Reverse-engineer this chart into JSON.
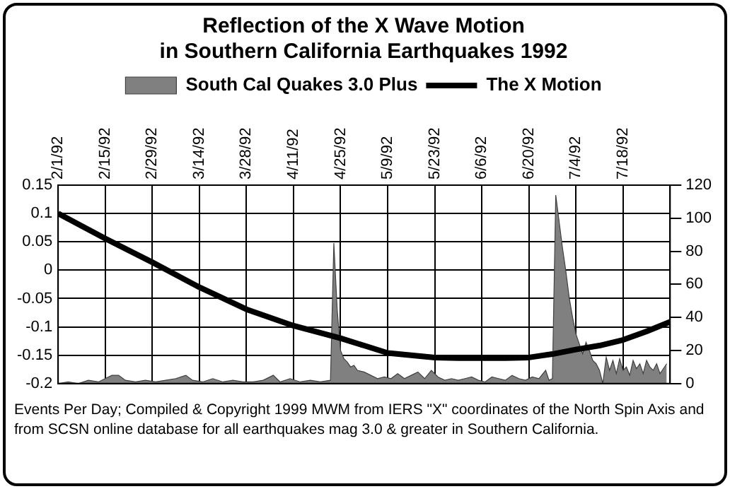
{
  "chart_data": {
    "type": "line",
    "title": "Reflection of the X Wave Motion\nin Southern California Earthquakes 1992",
    "xlim": [
      "1992-02-01",
      "1992-08-01"
    ],
    "xticks": [
      {
        "value": "1992-02-01",
        "label": "2/1/92"
      },
      {
        "value": "1992-02-15",
        "label": "2/15/92"
      },
      {
        "value": "1992-02-29",
        "label": "2/29/92"
      },
      {
        "value": "1992-03-14",
        "label": "3/14/92"
      },
      {
        "value": "1992-03-28",
        "label": "3/28/92"
      },
      {
        "value": "1992-04-11",
        "label": "4/11/92"
      },
      {
        "value": "1992-04-25",
        "label": "4/25/92"
      },
      {
        "value": "1992-05-09",
        "label": "5/9/92"
      },
      {
        "value": "1992-05-23",
        "label": "5/23/92"
      },
      {
        "value": "1992-06-06",
        "label": "6/6/92"
      },
      {
        "value": "1992-06-20",
        "label": "6/20/92"
      },
      {
        "value": "1992-07-04",
        "label": "7/4/92"
      },
      {
        "value": "1992-07-18",
        "label": "7/18/92"
      }
    ],
    "ylim": [
      -0.2,
      0.15
    ],
    "yticks": [
      -0.2,
      -0.15,
      -0.1,
      -0.05,
      0,
      0.05,
      0.1,
      0.15
    ],
    "y2lim": [
      0,
      120
    ],
    "y2ticks": [
      0,
      20,
      40,
      60,
      80,
      100,
      120
    ],
    "grid": true,
    "legend": "top",
    "series": [
      {
        "name": "South Cal Quakes 3.0 Plus",
        "type": "area",
        "axis": "y2",
        "color": "#808080",
        "x": [
          "1992-02-01",
          "1992-02-04",
          "1992-02-07",
          "1992-02-10",
          "1992-02-13",
          "1992-02-15",
          "1992-02-17",
          "1992-02-19",
          "1992-02-21",
          "1992-02-24",
          "1992-02-27",
          "1992-03-01",
          "1992-03-04",
          "1992-03-07",
          "1992-03-10",
          "1992-03-12",
          "1992-03-15",
          "1992-03-18",
          "1992-03-21",
          "1992-03-24",
          "1992-03-27",
          "1992-03-30",
          "1992-04-02",
          "1992-04-05",
          "1992-04-07",
          "1992-04-10",
          "1992-04-13",
          "1992-04-16",
          "1992-04-19",
          "1992-04-22",
          "1992-04-23",
          "1992-04-24",
          "1992-04-25",
          "1992-04-26",
          "1992-04-27",
          "1992-04-28",
          "1992-04-29",
          "1992-04-30",
          "1992-05-02",
          "1992-05-04",
          "1992-05-06",
          "1992-05-08",
          "1992-05-10",
          "1992-05-12",
          "1992-05-14",
          "1992-05-16",
          "1992-05-18",
          "1992-05-20",
          "1992-05-22",
          "1992-05-24",
          "1992-05-26",
          "1992-05-28",
          "1992-05-30",
          "1992-06-01",
          "1992-06-03",
          "1992-06-05",
          "1992-06-07",
          "1992-06-09",
          "1992-06-11",
          "1992-06-13",
          "1992-06-15",
          "1992-06-17",
          "1992-06-19",
          "1992-06-21",
          "1992-06-23",
          "1992-06-25",
          "1992-06-26",
          "1992-06-27",
          "1992-06-28",
          "1992-06-29",
          "1992-06-30",
          "1992-07-01",
          "1992-07-02",
          "1992-07-03",
          "1992-07-04",
          "1992-07-05",
          "1992-07-06",
          "1992-07-07",
          "1992-07-08",
          "1992-07-09",
          "1992-07-10",
          "1992-07-11",
          "1992-07-12",
          "1992-07-13",
          "1992-07-14",
          "1992-07-15",
          "1992-07-16",
          "1992-07-17",
          "1992-07-18",
          "1992-07-19",
          "1992-07-20",
          "1992-07-21",
          "1992-07-22",
          "1992-07-23",
          "1992-07-24",
          "1992-07-25",
          "1992-07-26",
          "1992-07-27",
          "1992-07-28",
          "1992-07-29",
          "1992-07-30",
          "1992-07-31"
        ],
        "values": [
          0,
          1,
          0,
          2,
          1,
          3,
          5,
          5,
          2,
          1,
          2,
          1,
          2,
          3,
          5,
          2,
          1,
          3,
          1,
          2,
          1,
          1,
          2,
          5,
          1,
          3,
          1,
          2,
          1,
          2,
          85,
          45,
          20,
          15,
          13,
          10,
          11,
          8,
          7,
          5,
          3,
          4,
          3,
          6,
          3,
          5,
          7,
          3,
          8,
          4,
          2,
          3,
          2,
          3,
          4,
          2,
          1,
          4,
          3,
          2,
          5,
          3,
          2,
          4,
          3,
          8,
          2,
          3,
          114,
          98,
          82,
          68,
          52,
          40,
          30,
          24,
          18,
          25,
          20,
          14,
          12,
          8,
          0,
          16,
          8,
          14,
          6,
          15,
          8,
          10,
          5,
          14,
          9,
          12,
          6,
          14,
          10,
          8,
          12,
          6,
          9,
          12
        ]
      },
      {
        "name": "The X Motion",
        "type": "line",
        "color": "#000000",
        "x": [
          "1992-02-01",
          "1992-02-15",
          "1992-02-29",
          "1992-03-14",
          "1992-03-28",
          "1992-04-11",
          "1992-04-25",
          "1992-05-02",
          "1992-05-09",
          "1992-05-16",
          "1992-05-23",
          "1992-05-30",
          "1992-06-06",
          "1992-06-13",
          "1992-06-20",
          "1992-06-27",
          "1992-07-04",
          "1992-07-11",
          "1992-07-18",
          "1992-07-25",
          "1992-08-01"
        ],
        "values": [
          0.1,
          0.056,
          0.014,
          -0.03,
          -0.069,
          -0.098,
          -0.12,
          -0.133,
          -0.146,
          -0.15,
          -0.154,
          -0.155,
          -0.155,
          -0.155,
          -0.154,
          -0.148,
          -0.14,
          -0.133,
          -0.123,
          -0.108,
          -0.091
        ]
      }
    ],
    "annotations": [
      "Events Per Day; Compiled & Copyright 1999 MWM from IERS \"X\" coordinates of the North Spin Axis and from SCSN online database for all earthquakes mag 3.0 & greater in Southern California."
    ]
  }
}
